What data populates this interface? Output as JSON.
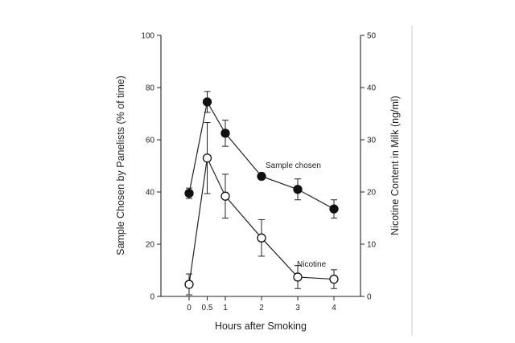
{
  "chart_data": {
    "type": "line",
    "xlabel": "Hours after Smoking",
    "ylabel_left": "Sample Chosen by Panelists (% of time)",
    "ylabel_right": "Nicotine Content in Milk (ng/ml)",
    "ylim_left": [
      0,
      100
    ],
    "ylim_right": [
      0,
      50
    ],
    "x_ticks": [
      0,
      0.5,
      1,
      2,
      3,
      4
    ],
    "x_tick_labels": [
      "0",
      "0.5",
      "1",
      "2",
      "3",
      "4"
    ],
    "y_ticks_left": [
      0,
      20,
      40,
      60,
      80,
      100
    ],
    "y_tick_labels_left": [
      "0",
      "20",
      "40",
      "60",
      "80",
      "100"
    ],
    "y_ticks_right": [
      0,
      10,
      20,
      30,
      40,
      50
    ],
    "y_tick_labels_right": [
      "0",
      "10",
      "20",
      "30",
      "40",
      "50"
    ],
    "grid": false,
    "series": [
      {
        "name": "Sample chosen",
        "axis": "left",
        "marker": "filled-circle",
        "x": [
          0,
          0.5,
          1,
          2,
          3,
          4
        ],
        "y": [
          39.5,
          74.5,
          62.5,
          46,
          41,
          33.5
        ],
        "err": [
          2,
          4,
          5,
          0,
          4,
          3.5
        ]
      },
      {
        "name": "Nicotine",
        "axis": "right",
        "marker": "open-circle",
        "x": [
          0,
          0.5,
          1,
          2,
          3,
          4
        ],
        "y": [
          2.3,
          26.5,
          19.2,
          11.2,
          3.7,
          3.3
        ],
        "err": [
          2,
          6.8,
          4.2,
          3.5,
          2.2,
          1.8
        ]
      }
    ]
  }
}
